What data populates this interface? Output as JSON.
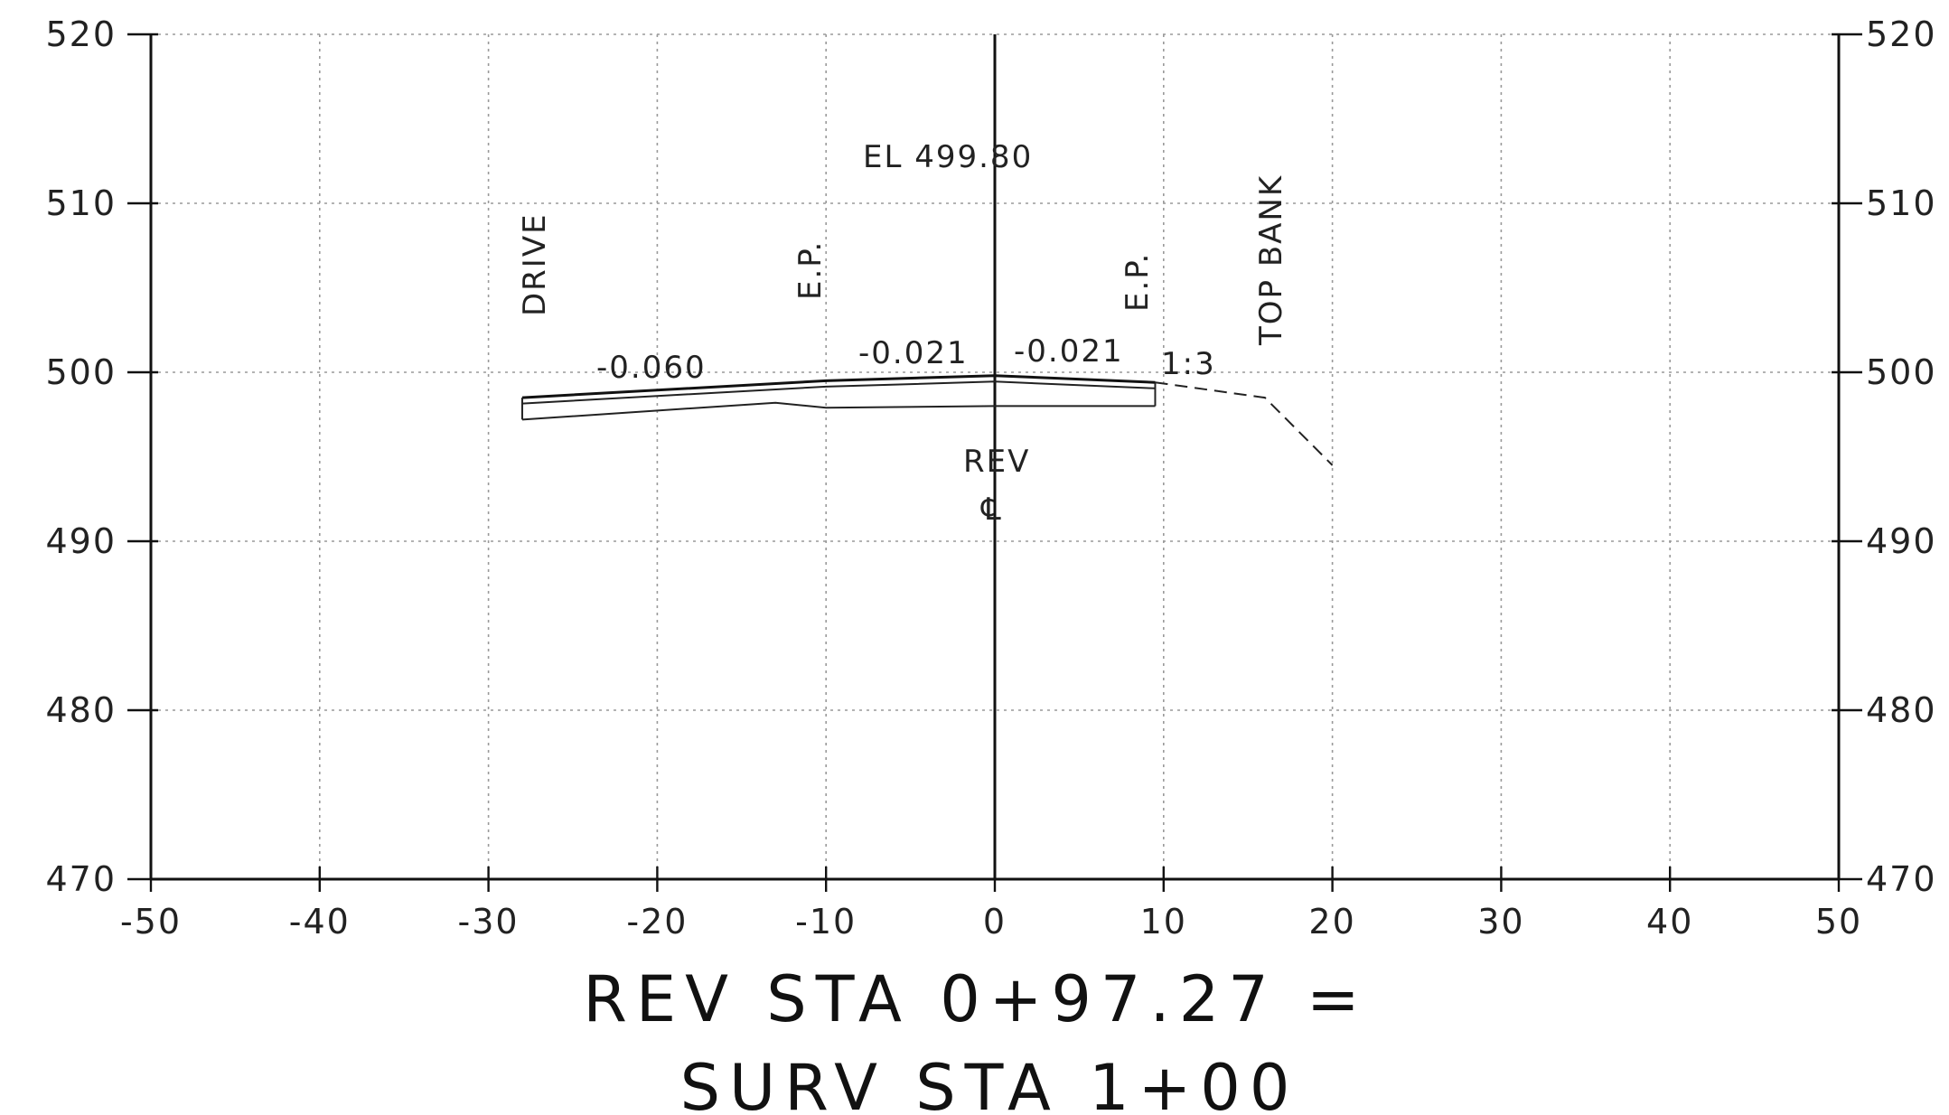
{
  "chart_data": {
    "type": "cross-section",
    "x_range": [
      -50,
      50
    ],
    "y_range": [
      470,
      520
    ],
    "x_step": 10,
    "y_step": 10,
    "grid": true,
    "x_ticks": [
      "-50",
      "-40",
      "-30",
      "-20",
      "-10",
      "0",
      "10",
      "20",
      "30",
      "40",
      "50"
    ],
    "y_ticks": [
      "470",
      "480",
      "490",
      "500",
      "510",
      "520"
    ],
    "title_line1": "REV STA 0+97.27 =",
    "title_line2": "SURV STA 1+00",
    "annotations": {
      "elevation": "EL 499.80",
      "drive": "DRIVE",
      "ep_left": "E.P.",
      "ep_right": "E.P.",
      "top_bank": "TOP BANK",
      "slope_left": "-0.060",
      "slope_mid_left": "-0.021",
      "slope_mid_right": "-0.021",
      "side_slope": "1:3",
      "rev": "REV",
      "centerline": "℄"
    },
    "finished_grade": [
      [
        -28,
        498.5
      ],
      [
        -10,
        499.5
      ],
      [
        0,
        499.8
      ],
      [
        9.5,
        499.4
      ]
    ],
    "subgrade": [
      [
        -28,
        497.2
      ],
      [
        -13,
        498.2
      ],
      [
        -10,
        497.9
      ],
      [
        0,
        498.0
      ],
      [
        9.5,
        498.0
      ]
    ],
    "existing_ground": [
      [
        9.5,
        499.4
      ],
      [
        16,
        498.5
      ],
      [
        20,
        494.5
      ]
    ]
  }
}
